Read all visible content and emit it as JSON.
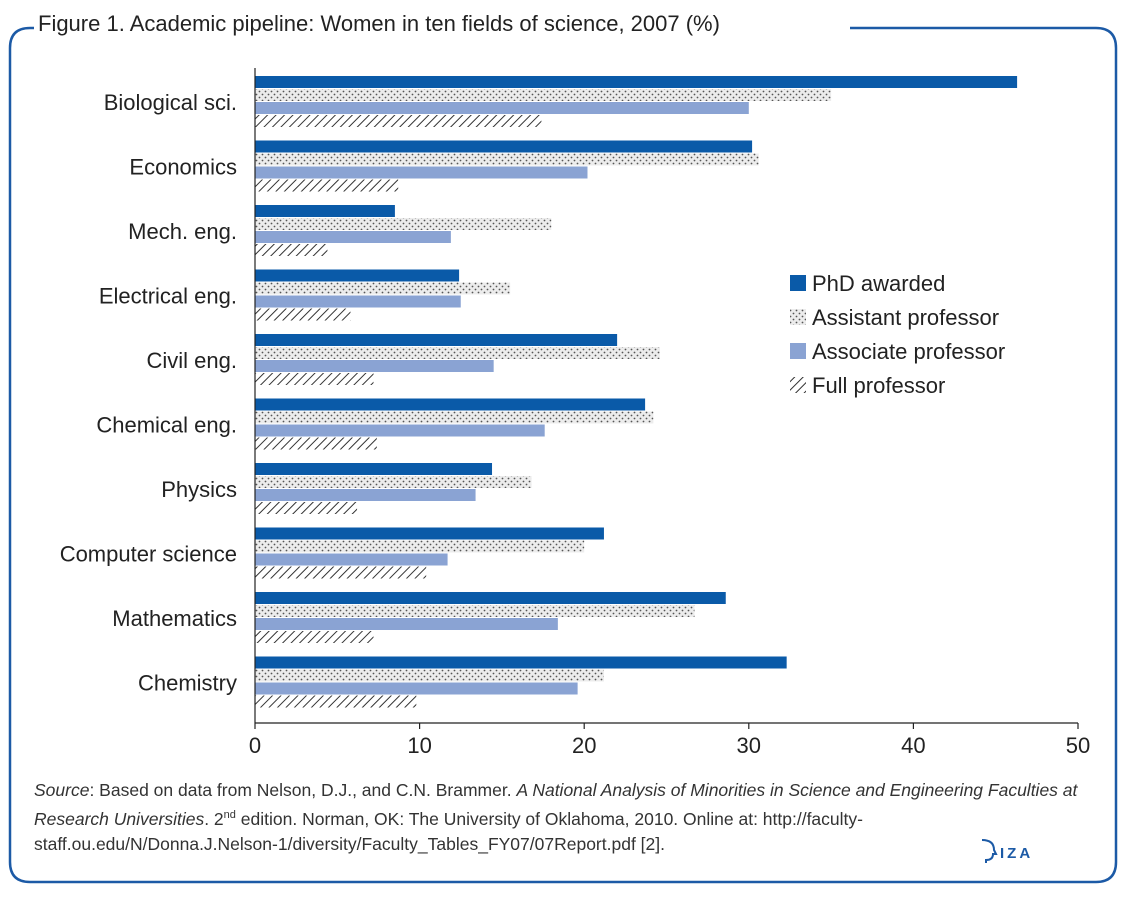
{
  "figure": {
    "title": "Figure 1. Academic pipeline: Women in ten fields of science, 2007 (%)"
  },
  "chart_data": {
    "type": "bar",
    "orientation": "horizontal",
    "categories": [
      "Biological sci.",
      "Economics",
      "Mech. eng.",
      "Electrical eng.",
      "Civil eng.",
      "Chemical eng.",
      "Physics",
      "Computer science",
      "Mathematics",
      "Chemistry"
    ],
    "series": [
      {
        "name": "PhD awarded",
        "color": "#0a5aa8",
        "pattern": "solid",
        "values": [
          46.3,
          30.2,
          8.5,
          12.4,
          22.0,
          23.7,
          14.4,
          21.2,
          28.6,
          32.3
        ]
      },
      {
        "name": "Assistant professor",
        "color": "#e6e6e6",
        "pattern": "dots",
        "values": [
          35.0,
          30.6,
          18.0,
          15.5,
          24.6,
          24.2,
          16.8,
          20.0,
          26.7,
          21.2
        ]
      },
      {
        "name": "Associate professor",
        "color": "#8aa3d3",
        "pattern": "solid",
        "values": [
          30.0,
          20.2,
          11.9,
          12.5,
          14.5,
          17.6,
          13.4,
          11.7,
          18.4,
          19.6
        ]
      },
      {
        "name": "Full professor",
        "color": "#333333",
        "pattern": "diagonal-hatch",
        "values": [
          17.4,
          8.7,
          4.4,
          5.8,
          7.2,
          7.4,
          6.2,
          10.4,
          7.2,
          9.8
        ]
      }
    ],
    "xlim": [
      0,
      50
    ],
    "xticks": [
      "0",
      "10",
      "20",
      "30",
      "40",
      "50"
    ],
    "xlabel": "",
    "ylabel": "",
    "grid": false,
    "legend_position": "right-middle"
  },
  "source": {
    "prefix": "Source",
    "text1": ": Based on data from Nelson, D.J., and C.N. Brammer. ",
    "book_title": "A National Analysis of Minorities in Science and Engineering Faculties at Research Universities",
    "text2": ". 2",
    "superscript": "nd",
    "text3": " edition. Norman, OK: The University of Oklahoma, 2010. Online at: http://faculty-staff.ou.edu/N/Donna.J.Nelson-1/diversity/Faculty_Tables_FY07/07Report.pdf [2]."
  },
  "logo": {
    "text": "IZA",
    "color": "#1c5aa6"
  }
}
